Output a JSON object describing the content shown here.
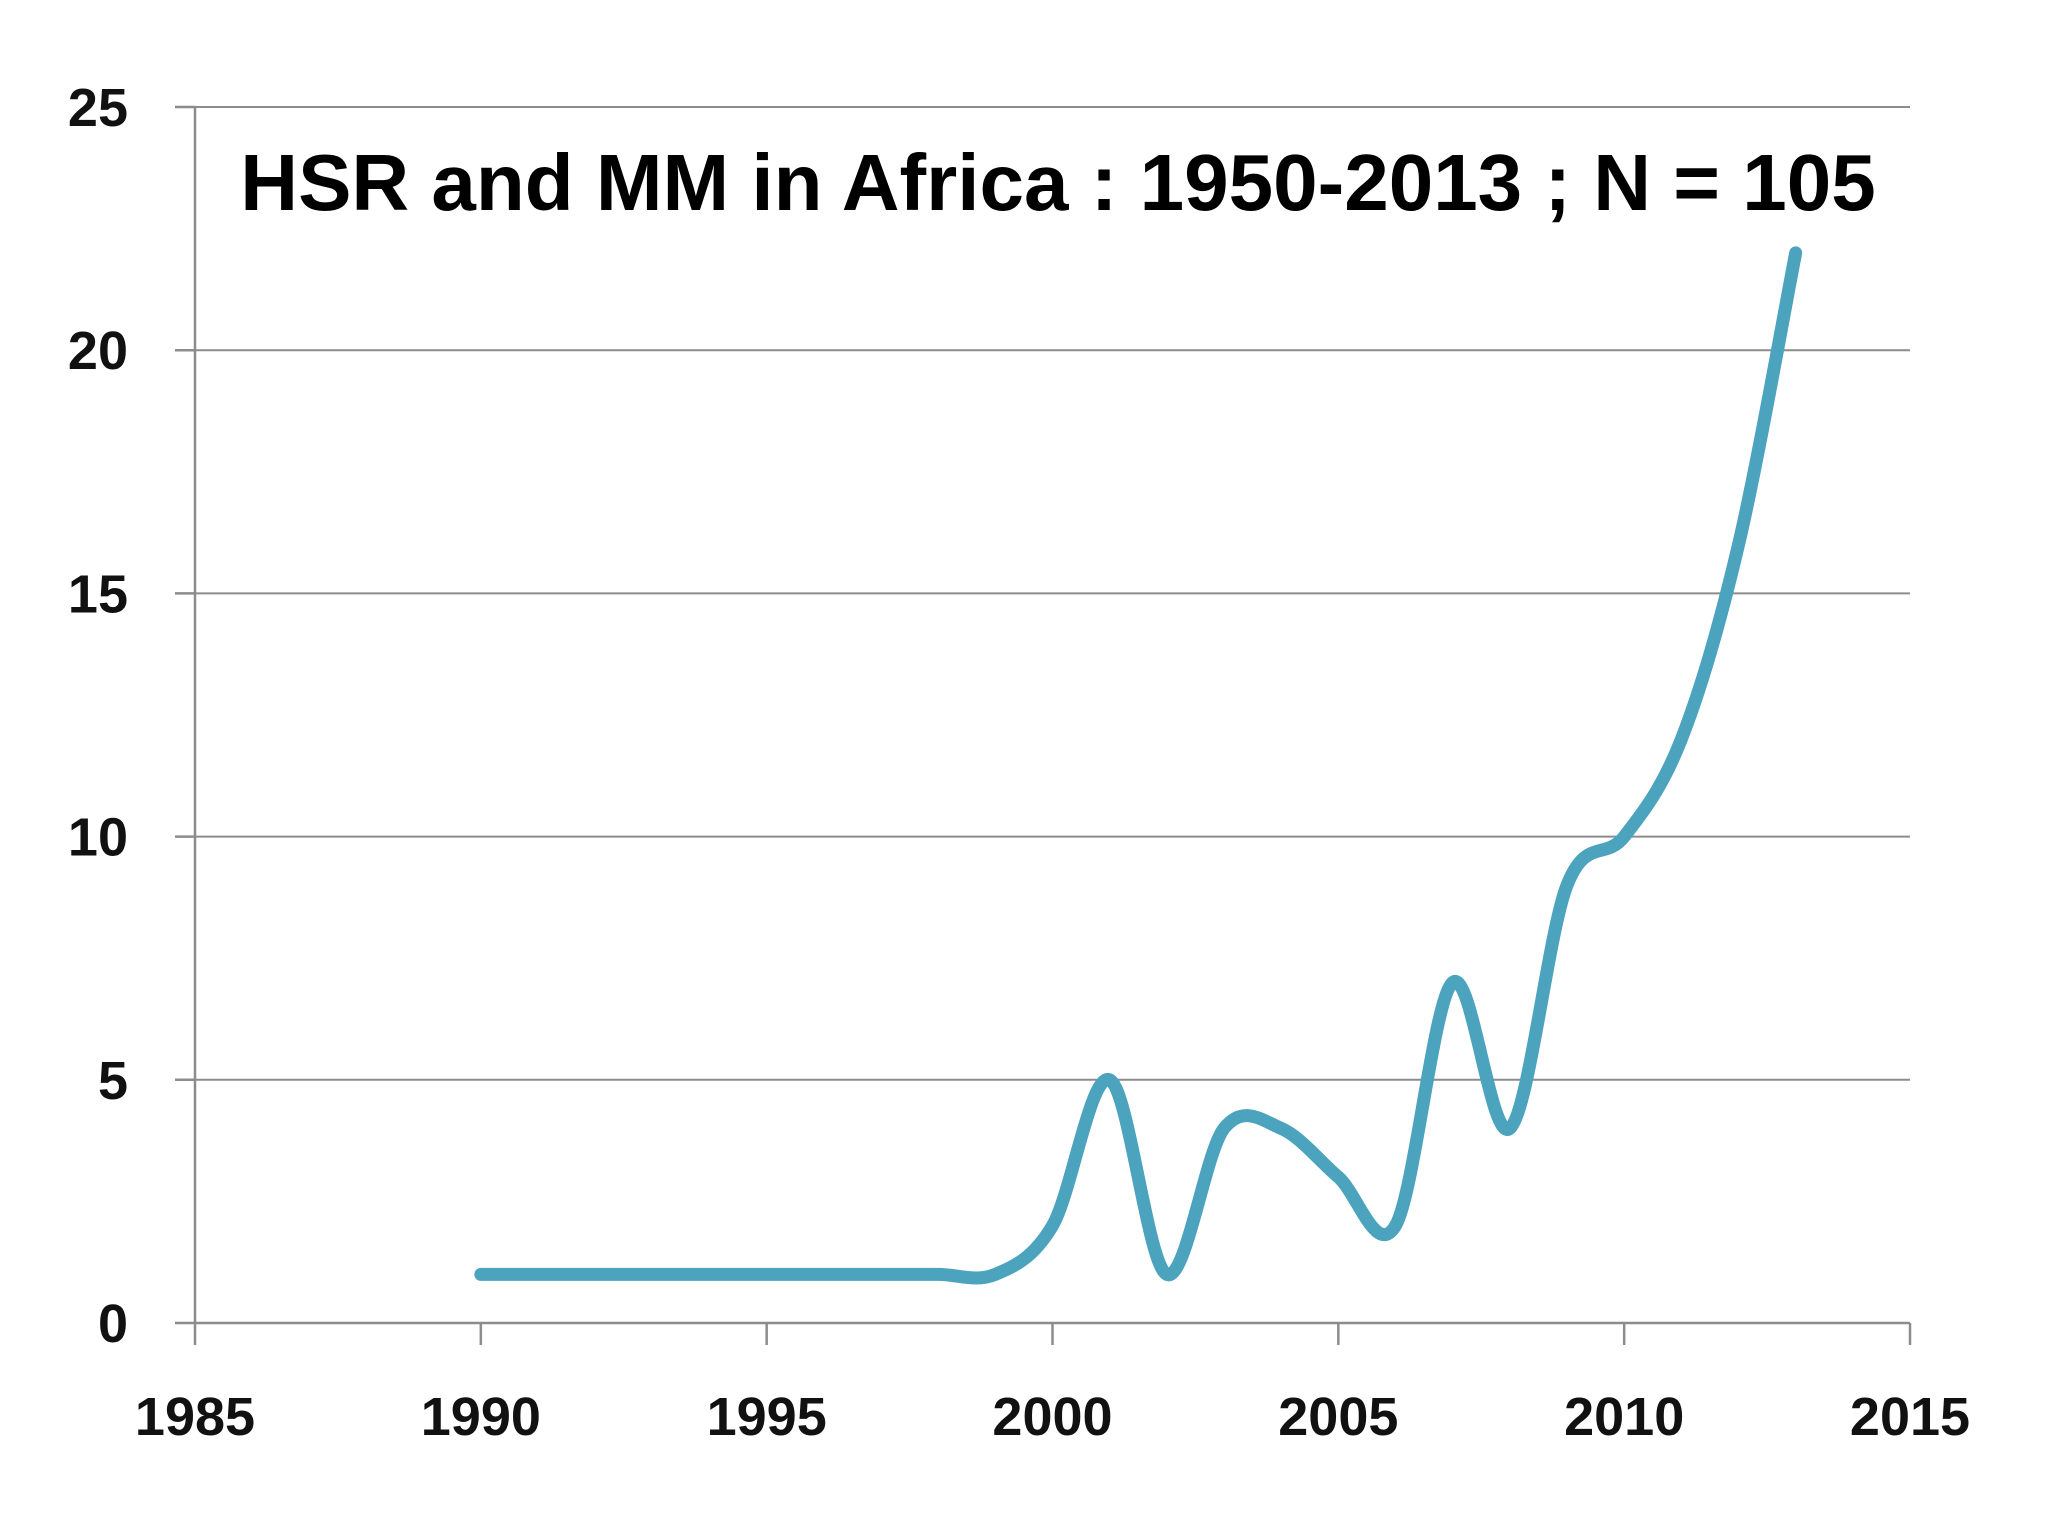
{
  "chart_data": {
    "type": "line",
    "title": "HSR and MM in Africa : 1950-2013 ; N = 105",
    "xlabel": "",
    "ylabel": "",
    "xlim": [
      1985,
      2015
    ],
    "ylim": [
      0,
      25
    ],
    "x_ticks": [
      "1985",
      "1990",
      "1995",
      "2000",
      "2005",
      "2010",
      "2015"
    ],
    "y_ticks": [
      "0",
      "5",
      "10",
      "15",
      "20",
      "25"
    ],
    "grid": "horizontal",
    "legend": "none",
    "series": [
      {
        "color": "#4ba3bd",
        "smooth": true,
        "x": [
          1990,
          1991,
          1992,
          1993,
          1994,
          1995,
          1996,
          1997,
          1998,
          1999,
          2000,
          2001,
          2002,
          2003,
          2004,
          2005,
          2006,
          2007,
          2008,
          2009,
          2010,
          2011,
          2012,
          2013
        ],
        "y": [
          1,
          1,
          1,
          1,
          1,
          1,
          1,
          1,
          1,
          1,
          2,
          5,
          1,
          4,
          4,
          3,
          2,
          7,
          4,
          9,
          10,
          12,
          16,
          22
        ]
      }
    ]
  }
}
